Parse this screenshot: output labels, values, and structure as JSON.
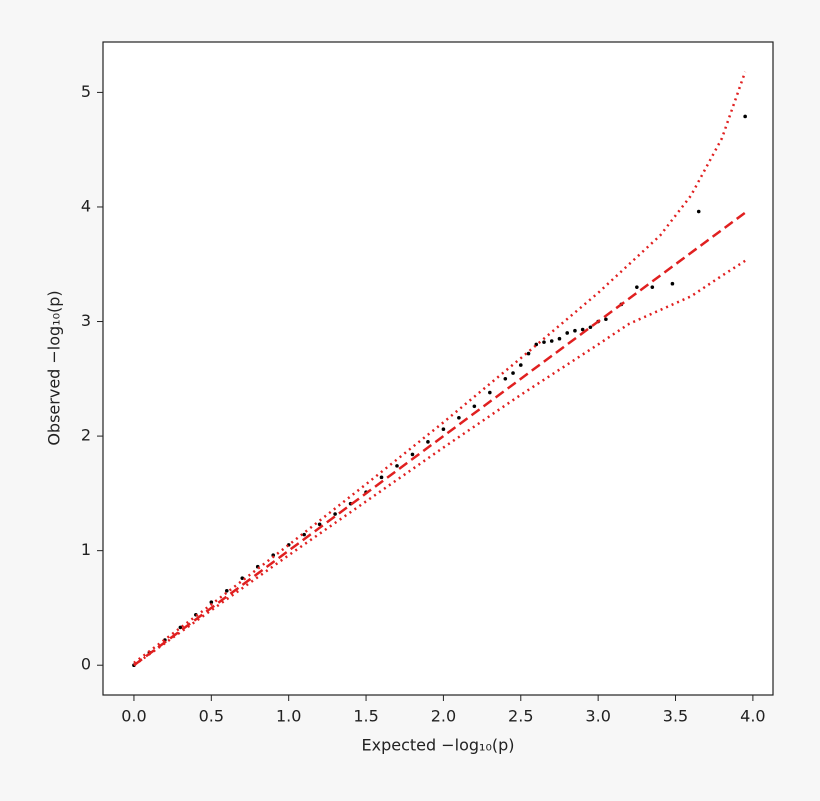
{
  "chart_data": {
    "type": "scatter",
    "x_label": "Expected −log₁₀(p)",
    "y_label": "Observed −log₁₀(p)",
    "xlim": [
      -0.2,
      4.13
    ],
    "ylim": [
      -0.26,
      5.44
    ],
    "xticks": [
      {
        "value": 0,
        "label": "0.0"
      },
      0.5,
      {
        "value": 1,
        "label": "1.0"
      },
      1.5,
      {
        "value": 2,
        "label": "2.0"
      },
      2.5,
      {
        "value": 3,
        "label": "3.0"
      },
      3.5,
      {
        "value": 4,
        "label": "4.0"
      }
    ],
    "yticks": [
      0,
      1,
      2,
      3,
      4,
      5
    ],
    "series": [
      {
        "kind": "scatter",
        "color": "#000000",
        "x": [
          0.0,
          0.1,
          0.2,
          0.3,
          0.4,
          0.5,
          0.6,
          0.7,
          0.8,
          0.9,
          1.0,
          1.1,
          1.2,
          1.3,
          1.4,
          1.5,
          1.6,
          1.7,
          1.8,
          1.9,
          2.0,
          2.1,
          2.2,
          2.3,
          2.4,
          2.45,
          2.5,
          2.55,
          2.6,
          2.65,
          2.7,
          2.75,
          2.8,
          2.85,
          2.9,
          2.95,
          3.0,
          3.05,
          3.15,
          3.25,
          3.35,
          3.48,
          3.65,
          3.95
        ],
        "values": [
          0.0,
          0.11,
          0.22,
          0.33,
          0.44,
          0.55,
          0.65,
          0.76,
          0.86,
          0.96,
          1.05,
          1.14,
          1.23,
          1.32,
          1.41,
          1.51,
          1.64,
          1.74,
          1.84,
          1.95,
          2.06,
          2.16,
          2.26,
          2.38,
          2.5,
          2.55,
          2.62,
          2.72,
          2.8,
          2.82,
          2.83,
          2.85,
          2.9,
          2.92,
          2.93,
          2.95,
          3.0,
          3.02,
          3.15,
          3.3,
          3.3,
          3.33,
          3.96,
          4.79
        ]
      },
      {
        "kind": "line",
        "color": "#e02020",
        "dash": "dashed",
        "x": [
          0,
          3.95
        ],
        "values": [
          0,
          3.95
        ]
      },
      {
        "kind": "line",
        "color": "#e02020",
        "dash": "dotted",
        "x": [
          0,
          0.5,
          1,
          1.5,
          2,
          2.5,
          3,
          3.2,
          3.4,
          3.6,
          3.8,
          3.95
        ],
        "values": [
          0.02,
          0.53,
          1.05,
          1.58,
          2.12,
          2.68,
          3.25,
          3.5,
          3.75,
          4.1,
          4.6,
          5.18
        ]
      },
      {
        "kind": "line",
        "color": "#e02020",
        "dash": "dotted",
        "x": [
          0,
          0.5,
          1,
          1.5,
          2,
          2.5,
          3,
          3.2,
          3.4,
          3.6,
          3.8,
          3.95
        ],
        "values": [
          0,
          0.48,
          0.96,
          1.43,
          1.9,
          2.36,
          2.8,
          2.98,
          3.1,
          3.22,
          3.4,
          3.53
        ]
      }
    ]
  }
}
